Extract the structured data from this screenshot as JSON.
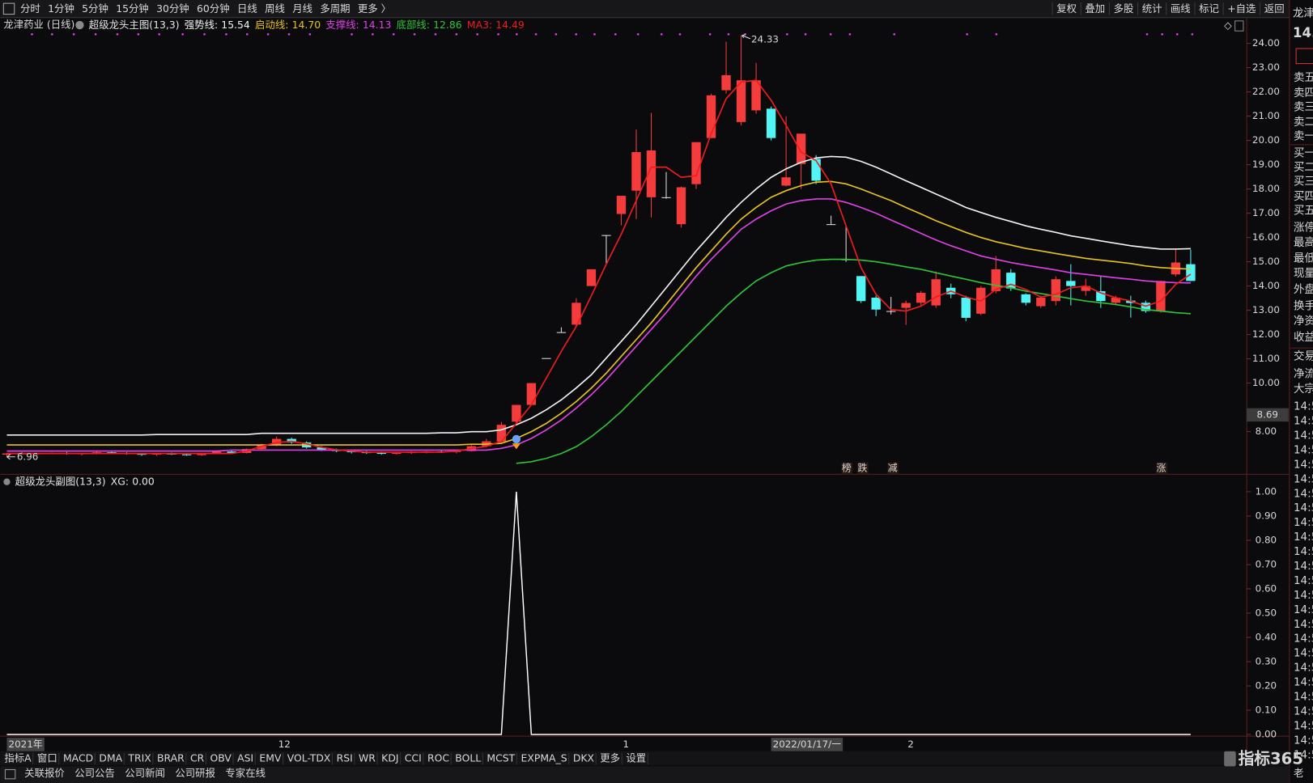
{
  "toolbar": {
    "periods": [
      "分时",
      "1分钟",
      "5分钟",
      "15分钟",
      "30分钟",
      "60分钟",
      "日线",
      "周线",
      "月线",
      "多周期",
      "更多 〉"
    ],
    "tools": [
      "复权",
      "叠加",
      "多股",
      "统计",
      "画线",
      "标记",
      "+自选",
      "返回"
    ]
  },
  "chart_data": {
    "type": "candlestick",
    "title": "龙津药业 (日线)",
    "indicator": "超级龙头主图(13,3)",
    "categories": [
      "2021年",
      null,
      null,
      null,
      null,
      null,
      null,
      null,
      null,
      null,
      null,
      null,
      null,
      null,
      null,
      null,
      null,
      null,
      "12",
      null,
      null,
      null,
      null,
      null,
      null,
      null,
      null,
      null,
      null,
      null,
      null,
      null,
      null,
      null,
      null,
      null,
      null,
      null,
      null,
      null,
      null,
      "1",
      null,
      null,
      null,
      null,
      null,
      null,
      null,
      null,
      null,
      "2022/01/17/一",
      null,
      null,
      null,
      null,
      null,
      null,
      null,
      null,
      "2",
      null,
      null,
      null,
      null,
      null,
      null,
      null,
      null,
      null,
      null,
      null,
      null,
      null,
      null,
      null,
      null,
      null,
      null,
      null
    ],
    "ohlc": [
      [
        7.05,
        7.12,
        6.96,
        7.1
      ],
      [
        7.1,
        7.15,
        7.05,
        7.08
      ],
      [
        7.08,
        7.12,
        7.02,
        7.1
      ],
      [
        7.1,
        7.14,
        7.06,
        7.12
      ],
      [
        7.12,
        7.16,
        7.05,
        7.07
      ],
      [
        7.07,
        7.12,
        7.02,
        7.1
      ],
      [
        7.1,
        7.18,
        7.06,
        7.15
      ],
      [
        7.15,
        7.2,
        7.1,
        7.12
      ],
      [
        7.12,
        7.15,
        7.05,
        7.08
      ],
      [
        7.08,
        7.12,
        7.0,
        7.05
      ],
      [
        7.05,
        7.1,
        7.0,
        7.09
      ],
      [
        7.09,
        7.14,
        7.04,
        7.06
      ],
      [
        7.06,
        7.1,
        7.0,
        7.03
      ],
      [
        7.03,
        7.12,
        7.0,
        7.1
      ],
      [
        7.1,
        7.2,
        7.08,
        7.18
      ],
      [
        7.18,
        7.25,
        7.1,
        7.12
      ],
      [
        7.12,
        7.3,
        7.1,
        7.28
      ],
      [
        7.28,
        7.5,
        7.25,
        7.45
      ],
      [
        7.45,
        7.8,
        7.4,
        7.7
      ],
      [
        7.7,
        7.75,
        7.5,
        7.55
      ],
      [
        7.55,
        7.6,
        7.3,
        7.35
      ],
      [
        7.35,
        7.4,
        7.2,
        7.25
      ],
      [
        7.25,
        7.3,
        7.15,
        7.2
      ],
      [
        7.2,
        7.25,
        7.1,
        7.15
      ],
      [
        7.15,
        7.2,
        7.08,
        7.12
      ],
      [
        7.12,
        7.18,
        7.05,
        7.1
      ],
      [
        7.1,
        7.15,
        7.05,
        7.12
      ],
      [
        7.12,
        7.2,
        7.08,
        7.15
      ],
      [
        7.15,
        7.2,
        7.1,
        7.18
      ],
      [
        7.18,
        7.25,
        7.12,
        7.16
      ],
      [
        7.16,
        7.2,
        7.1,
        7.2
      ],
      [
        7.2,
        7.45,
        7.18,
        7.4
      ],
      [
        7.4,
        7.7,
        7.35,
        7.6
      ],
      [
        7.59,
        8.4,
        7.5,
        8.28
      ],
      [
        8.41,
        9.1,
        8.3,
        9.1
      ],
      [
        9.1,
        10.0,
        9.1,
        10.0
      ],
      [
        11.03,
        11.03,
        11.03,
        11.03
      ],
      [
        12.1,
        12.3,
        12.1,
        12.1
      ],
      [
        12.41,
        13.5,
        12.3,
        13.31
      ],
      [
        14.0,
        14.69,
        14.0,
        14.69
      ],
      [
        16.1,
        16.1,
        14.9,
        16.1
      ],
      [
        16.97,
        17.72,
        16.5,
        17.72
      ],
      [
        17.93,
        20.45,
        16.76,
        19.52
      ],
      [
        17.66,
        21.14,
        16.83,
        19.59
      ],
      [
        17.66,
        18.7,
        17.6,
        17.66
      ],
      [
        16.55,
        18.1,
        16.41,
        18.07
      ],
      [
        18.2,
        19.93,
        18.0,
        19.93
      ],
      [
        20.1,
        21.93,
        20.1,
        21.86
      ],
      [
        22.07,
        24.07,
        21.93,
        22.69
      ],
      [
        20.76,
        24.33,
        20.62,
        22.48
      ],
      [
        21.24,
        23.2,
        21.1,
        22.48
      ],
      [
        21.31,
        21.4,
        20.0,
        20.1
      ],
      [
        18.14,
        21.0,
        18.1,
        18.48
      ],
      [
        19.03,
        20.28,
        18.0,
        20.28
      ],
      [
        19.24,
        19.4,
        18.2,
        18.34
      ],
      [
        16.55,
        16.9,
        16.55,
        16.55
      ],
      [
        15.1,
        16.48,
        15.0,
        15.1
      ],
      [
        14.41,
        14.41,
        13.3,
        13.38
      ],
      [
        13.52,
        13.6,
        12.76,
        13.03
      ],
      [
        12.97,
        13.55,
        12.83,
        12.97
      ],
      [
        13.1,
        13.4,
        12.4,
        13.3
      ],
      [
        13.31,
        13.8,
        13.2,
        13.72
      ],
      [
        13.2,
        14.6,
        13.1,
        14.28
      ],
      [
        13.93,
        14.1,
        13.5,
        13.66
      ],
      [
        13.52,
        13.6,
        12.55,
        12.69
      ],
      [
        12.86,
        14.0,
        12.8,
        13.93
      ],
      [
        13.79,
        15.24,
        13.7,
        14.69
      ],
      [
        14.55,
        14.7,
        13.8,
        13.9
      ],
      [
        13.66,
        13.7,
        13.2,
        13.31
      ],
      [
        13.17,
        13.6,
        13.1,
        13.52
      ],
      [
        13.38,
        14.4,
        13.2,
        14.28
      ],
      [
        14.21,
        14.9,
        13.2,
        14.0
      ],
      [
        13.8,
        14.3,
        13.6,
        14.0
      ],
      [
        13.79,
        14.4,
        13.1,
        13.38
      ],
      [
        13.31,
        13.6,
        13.2,
        13.52
      ],
      [
        13.4,
        13.6,
        12.7,
        13.3
      ],
      [
        13.31,
        13.4,
        12.9,
        12.97
      ],
      [
        12.97,
        14.21,
        12.9,
        14.21
      ],
      [
        14.48,
        15.5,
        14.4,
        14.97
      ],
      [
        14.9,
        15.5,
        14.2,
        14.21
      ]
    ],
    "up_color": "#f43c3c",
    "down_color": "#52f5f5",
    "flat_color": "#e0e0e0",
    "series": [
      {
        "name": "强势线:",
        "value_label": "15.54",
        "color": "#f2f2f2",
        "values": [
          7.86,
          7.86,
          7.86,
          7.86,
          7.86,
          7.86,
          7.86,
          7.86,
          7.86,
          7.86,
          7.88,
          7.88,
          7.88,
          7.88,
          7.88,
          7.88,
          7.88,
          7.93,
          7.93,
          7.93,
          7.93,
          7.93,
          7.93,
          7.93,
          7.93,
          7.93,
          7.93,
          7.93,
          7.93,
          7.95,
          7.95,
          8.0,
          8.0,
          8.07,
          8.28,
          8.55,
          8.9,
          9.31,
          9.8,
          10.34,
          11.03,
          11.72,
          12.41,
          13.17,
          13.93,
          14.69,
          15.45,
          16.14,
          16.83,
          17.45,
          18.0,
          18.48,
          18.83,
          19.1,
          19.28,
          19.34,
          19.31,
          19.14,
          18.9,
          18.62,
          18.34,
          18.07,
          17.79,
          17.52,
          17.24,
          17.03,
          16.83,
          16.66,
          16.48,
          16.34,
          16.21,
          16.07,
          15.97,
          15.86,
          15.76,
          15.66,
          15.59,
          15.52,
          15.52,
          15.54
        ]
      },
      {
        "name": "启动线:",
        "value_label": "14.70",
        "color": "#e8c21e",
        "values": [
          7.45,
          7.45,
          7.45,
          7.45,
          7.45,
          7.45,
          7.45,
          7.45,
          7.45,
          7.45,
          7.45,
          7.45,
          7.45,
          7.45,
          7.45,
          7.45,
          7.45,
          7.45,
          7.45,
          7.45,
          7.45,
          7.45,
          7.45,
          7.45,
          7.45,
          7.45,
          7.45,
          7.45,
          7.45,
          7.45,
          7.45,
          7.48,
          7.48,
          7.52,
          7.72,
          8.0,
          8.34,
          8.76,
          9.24,
          9.79,
          10.41,
          11.1,
          11.79,
          12.48,
          13.24,
          14.0,
          14.76,
          15.45,
          16.14,
          16.76,
          17.24,
          17.66,
          17.93,
          18.14,
          18.28,
          18.31,
          18.21,
          18.0,
          17.76,
          17.52,
          17.24,
          16.97,
          16.69,
          16.45,
          16.21,
          16.0,
          15.83,
          15.69,
          15.55,
          15.45,
          15.34,
          15.24,
          15.14,
          15.07,
          15.0,
          14.93,
          14.83,
          14.76,
          14.72,
          14.7
        ]
      },
      {
        "name": "支撑线:",
        "value_label": "14.13",
        "color": "#e040e8",
        "values": [
          7.2,
          7.2,
          7.2,
          7.2,
          7.2,
          7.2,
          7.2,
          7.2,
          7.2,
          7.2,
          7.2,
          7.2,
          7.2,
          7.2,
          7.2,
          7.24,
          7.24,
          7.24,
          7.24,
          7.24,
          7.24,
          7.24,
          7.24,
          7.24,
          7.24,
          7.24,
          7.24,
          7.24,
          7.24,
          7.24,
          7.24,
          7.24,
          7.24,
          7.31,
          7.45,
          7.72,
          8.07,
          8.48,
          8.97,
          9.52,
          10.14,
          10.83,
          11.52,
          12.21,
          12.9,
          13.66,
          14.41,
          15.1,
          15.72,
          16.34,
          16.76,
          17.1,
          17.38,
          17.52,
          17.59,
          17.59,
          17.45,
          17.24,
          17.0,
          16.72,
          16.45,
          16.17,
          15.9,
          15.66,
          15.45,
          15.24,
          15.1,
          14.97,
          14.86,
          14.76,
          14.66,
          14.55,
          14.48,
          14.41,
          14.34,
          14.28,
          14.21,
          14.17,
          14.14,
          14.13
        ]
      },
      {
        "name": "底部线:",
        "value_label": "12.86",
        "color": "#2ec43a",
        "values": [
          null,
          null,
          null,
          null,
          null,
          null,
          null,
          null,
          null,
          null,
          null,
          null,
          null,
          null,
          null,
          null,
          null,
          null,
          null,
          null,
          null,
          null,
          null,
          null,
          null,
          null,
          null,
          null,
          null,
          null,
          null,
          null,
          null,
          null,
          6.69,
          6.76,
          6.9,
          7.1,
          7.38,
          7.79,
          8.28,
          8.83,
          9.45,
          10.07,
          10.69,
          11.31,
          11.93,
          12.55,
          13.17,
          13.72,
          14.21,
          14.55,
          14.83,
          14.97,
          15.07,
          15.1,
          15.1,
          15.07,
          15.0,
          14.9,
          14.79,
          14.69,
          14.55,
          14.41,
          14.28,
          14.14,
          14.03,
          13.93,
          13.79,
          13.69,
          13.59,
          13.48,
          13.38,
          13.31,
          13.24,
          13.14,
          13.03,
          12.97,
          12.9,
          12.86
        ]
      },
      {
        "name": "MA3:",
        "value_label": "14.49",
        "color": "#f01c1c",
        "values": [
          7.1,
          7.1,
          7.1,
          7.1,
          7.1,
          7.1,
          7.1,
          7.1,
          7.1,
          7.1,
          7.1,
          7.1,
          7.1,
          7.1,
          7.1,
          7.1,
          7.2,
          7.4,
          7.55,
          7.6,
          7.5,
          7.35,
          7.25,
          7.2,
          7.15,
          7.15,
          7.15,
          7.15,
          7.15,
          7.15,
          7.2,
          7.3,
          7.4,
          7.59,
          8.34,
          9.1,
          10.21,
          11.31,
          12.34,
          13.59,
          14.9,
          16.14,
          17.52,
          18.9,
          18.9,
          18.48,
          18.55,
          20.28,
          21.72,
          22.41,
          22.48,
          21.66,
          20.62,
          19.52,
          19.17,
          18.21,
          16.48,
          14.76,
          13.66,
          13.03,
          12.97,
          13.17,
          13.55,
          13.79,
          13.55,
          13.38,
          13.86,
          14.07,
          13.86,
          13.55,
          13.66,
          13.93,
          14.0,
          13.72,
          13.52,
          13.38,
          13.17,
          13.38,
          14.07,
          14.49
        ]
      }
    ],
    "ylim": [
      6.24,
      24.41
    ],
    "yticks": [
      {
        "value": 24,
        "label": "24.00"
      },
      {
        "value": 23,
        "label": "23.00"
      },
      {
        "value": 22,
        "label": "22.00"
      },
      {
        "value": 21,
        "label": "21.00"
      },
      {
        "value": 20,
        "label": "20.00"
      },
      {
        "value": 19,
        "label": "19.00"
      },
      {
        "value": 18,
        "label": "18.00"
      },
      {
        "value": 17,
        "label": "17.00"
      },
      {
        "value": 16,
        "label": "16.00"
      },
      {
        "value": 15,
        "label": "15.00"
      },
      {
        "value": 14,
        "label": "14.00"
      },
      {
        "value": 13,
        "label": "13.00"
      },
      {
        "value": 12,
        "label": "12.00"
      },
      {
        "value": 11,
        "label": "11.00"
      },
      {
        "value": 10,
        "label": "10.00"
      },
      {
        "value": 8,
        "label": "8.00"
      }
    ],
    "high_label": 24.33,
    "low_label": 6.96,
    "cursor_price": 8.69,
    "signals": [
      {
        "text": "榜",
        "color": "#ff8a3a"
      },
      {
        "text": "跌",
        "color": "#3ee04a"
      },
      {
        "text": "减",
        "color": "#3ee04a"
      },
      {
        "text": "涨",
        "color": "#ff3a3a"
      }
    ]
  },
  "sub_chart": {
    "type": "line",
    "title": "超级龙头副图(13,3)",
    "series": [
      {
        "name": "XG:",
        "value_label": "0.00",
        "color": "#ffffff",
        "values": [
          0,
          0,
          0,
          0,
          0,
          0,
          0,
          0,
          0,
          0,
          0,
          0,
          0,
          0,
          0,
          0,
          0,
          0,
          0,
          0,
          0,
          0,
          0,
          0,
          0,
          0,
          0,
          0,
          0,
          0,
          0,
          0,
          0,
          0,
          1,
          0,
          0,
          0,
          0,
          0,
          0,
          0,
          0,
          0,
          0,
          0,
          0,
          0,
          0,
          0,
          0,
          0,
          0,
          0,
          0,
          0,
          0,
          0,
          0,
          0,
          0,
          0,
          0,
          0,
          0,
          0,
          0,
          0,
          0,
          0,
          0,
          0,
          0,
          0,
          0,
          0,
          0,
          0,
          0,
          0
        ]
      }
    ],
    "ylim": [
      0,
      1.02
    ],
    "yticks": [
      {
        "value": 1,
        "label": "1.00"
      },
      {
        "value": 0.9,
        "label": "0.90"
      },
      {
        "value": 0.8,
        "label": "0.80"
      },
      {
        "value": 0.7,
        "label": "0.70"
      },
      {
        "value": 0.6,
        "label": "0.60"
      },
      {
        "value": 0.5,
        "label": "0.50"
      },
      {
        "value": 0.4,
        "label": "0.40"
      },
      {
        "value": 0.3,
        "label": "0.30"
      },
      {
        "value": 0.2,
        "label": "0.20"
      },
      {
        "value": 0.1,
        "label": "0.10"
      },
      {
        "value": 0,
        "label": "0.00"
      }
    ]
  },
  "indicator_tabs": [
    "指标A",
    "窗口",
    "MACD",
    "DMA",
    "TRIX",
    "BRAR",
    "CR",
    "OBV",
    "ASI",
    "EMV",
    "VOL-TDX",
    "RSI",
    "WR",
    "KDJ",
    "CCI",
    "ROC",
    "BOLL",
    "MCST",
    "EXPMA_S",
    "DKX",
    "更多",
    "设置"
  ],
  "status_bar": [
    "关联报价",
    "公司公告",
    "公司新闻",
    "公司研报",
    "专家在线"
  ],
  "quote_panel": {
    "name": "龙津",
    "price": "14.",
    "rows": [
      "卖五",
      "卖四",
      "卖三",
      "卖二",
      "卖一",
      "买一",
      "买二",
      "买三",
      "买四",
      "买五",
      "涨停",
      "最高",
      "最低",
      "现量",
      "外盘",
      "换手",
      "净资",
      "收益",
      "交易",
      "净流",
      "大宗"
    ],
    "time_rows": [
      "14:5",
      "14:5",
      "14:5",
      "14:5",
      "14:5",
      "14:5",
      "14:5",
      "14:5",
      "14:5",
      "14:5",
      "14:5",
      "14:5",
      "14:5",
      "14:5",
      "14:5",
      "14:5",
      "14:5",
      "14:5",
      "14:5",
      "14:5",
      "14:5",
      "14:5",
      "14:5",
      "14:5",
      "14:5"
    ],
    "footer": "老"
  },
  "watermark": "指标365"
}
